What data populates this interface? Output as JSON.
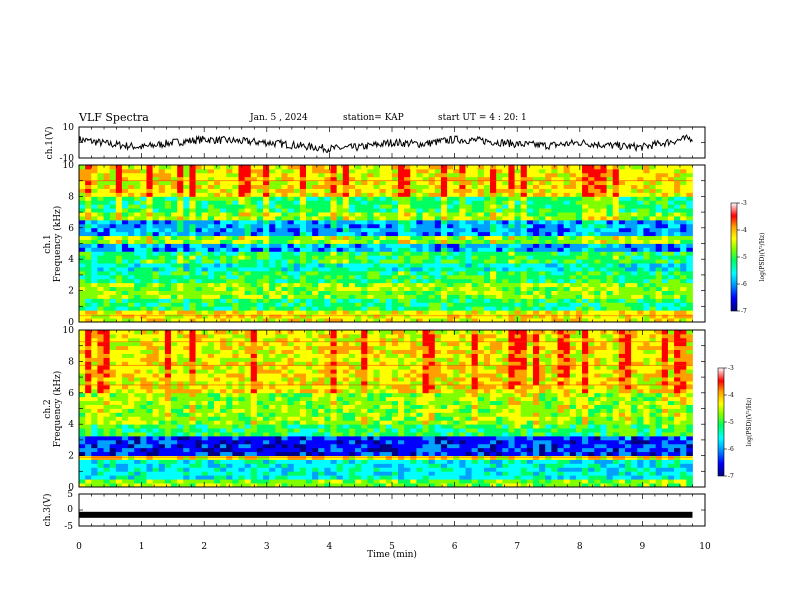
{
  "header": {
    "title": "VLF Spectra",
    "date": "Jan. 5 , 2024",
    "station": "station= KAP",
    "start": "start UT =  4 : 20: 1"
  },
  "colors": {
    "colormap": [
      "#000080",
      "#0000ff",
      "#00a0ff",
      "#00ffff",
      "#00ff60",
      "#80ff00",
      "#ffff00",
      "#ffa000",
      "#ff0000",
      "#ffffff"
    ],
    "trace": "#000000"
  },
  "chart_data": [
    {
      "type": "line",
      "panel": "ch1-waveform",
      "ylabel": "ch.1(V)",
      "x_unit": "min",
      "xlim": [
        0,
        10
      ],
      "ylim": [
        -10,
        10
      ],
      "yticks": [
        "10",
        "-10"
      ],
      "series": [
        {
          "x": [
            0,
            0.5,
            1,
            1.5,
            2,
            2.5,
            3,
            3.5,
            4,
            4.5,
            5,
            5.5,
            6,
            6.5,
            7,
            7.5,
            8,
            8.5,
            9,
            9.5,
            9.8
          ],
          "values": [
            2,
            -1,
            -3,
            0,
            2,
            1,
            0,
            -2,
            -4,
            -3,
            0,
            -1,
            2,
            1,
            -1,
            -2,
            0,
            -2,
            -3,
            1,
            3
          ]
        }
      ]
    },
    {
      "type": "heatmap",
      "panel": "ch1-spectrogram",
      "ylabel": "ch.1\nFrequency (kHz)",
      "x_unit": "min",
      "xlim": [
        0,
        10
      ],
      "ylim": [
        0,
        10
      ],
      "yticks": [
        "0",
        "2",
        "4",
        "6",
        "8",
        "10"
      ],
      "data_end_min": 9.8,
      "colorbar": {
        "label": "log(PSD)(V²/Hz)",
        "range": [
          -7,
          -3
        ],
        "ticks": [
          "-3",
          "-4",
          "-5",
          "-6",
          "-7"
        ]
      }
    },
    {
      "type": "heatmap",
      "panel": "ch2-spectrogram",
      "ylabel": "ch.2\nFrequency (kHz)",
      "x_unit": "min",
      "xlim": [
        0,
        10
      ],
      "ylim": [
        0,
        10
      ],
      "yticks": [
        "0",
        "2",
        "4",
        "6",
        "8",
        "10"
      ],
      "data_end_min": 9.8,
      "colorbar": {
        "label": "log(PSD)(V²/Hz)",
        "range": [
          -7,
          -3
        ],
        "ticks": [
          "-3",
          "-4",
          "-5",
          "-6",
          "-7"
        ]
      }
    },
    {
      "type": "line",
      "panel": "ch3-waveform",
      "ylabel": "ch.3(V)",
      "xlabel": "Time (min)",
      "x_unit": "min",
      "xlim": [
        0,
        10
      ],
      "ylim": [
        -5,
        5
      ],
      "yticks": [
        "5",
        "0",
        "-5"
      ],
      "xticks": [
        "0",
        "1",
        "2",
        "3",
        "4",
        "5",
        "6",
        "7",
        "8",
        "9",
        "10"
      ],
      "series": [
        {
          "x": [
            0,
            9.8
          ],
          "values": [
            -1.5,
            -1.5
          ]
        }
      ]
    }
  ]
}
